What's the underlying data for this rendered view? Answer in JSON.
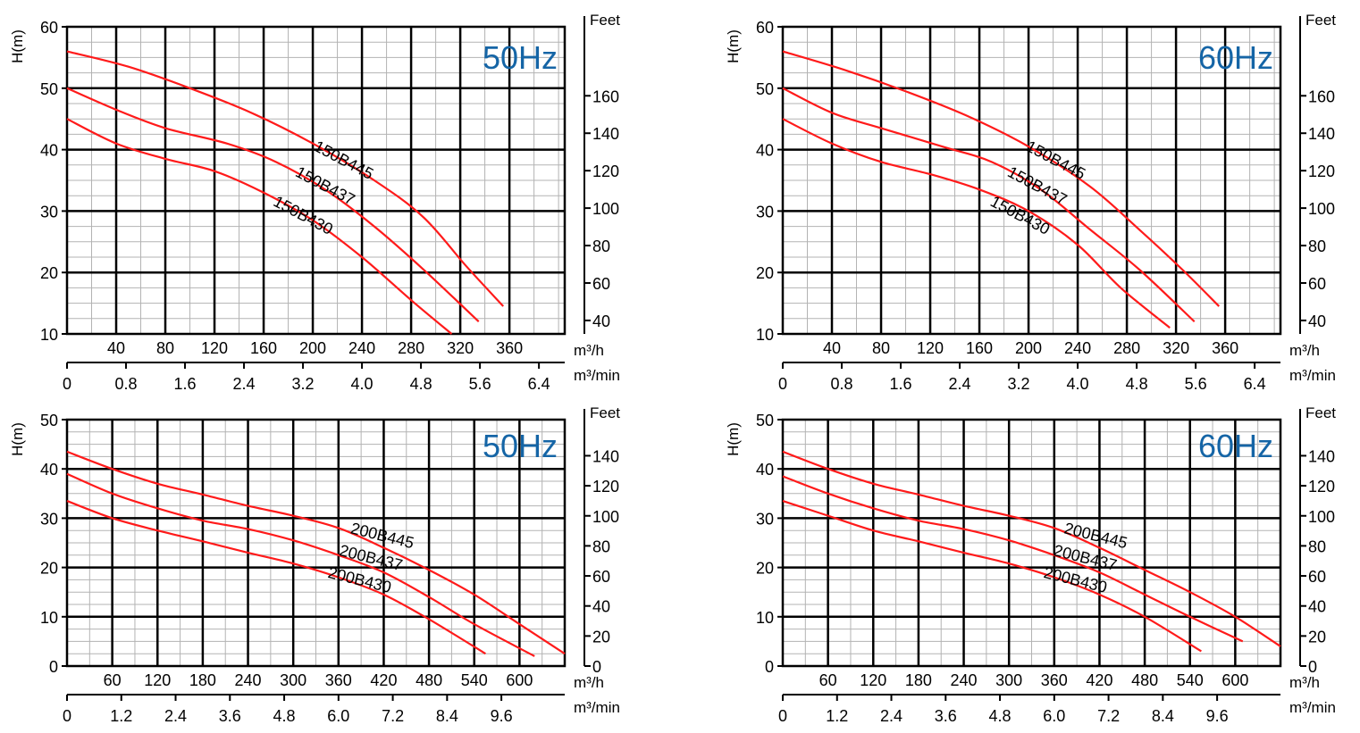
{
  "colors": {
    "curve": "#ff1a1a",
    "freq_label": "#1565a6",
    "grid_major": "#000000",
    "grid_minor": "#b3b3b3"
  },
  "chart_data": [
    {
      "type": "line",
      "freq_label": "50Hz",
      "ylabel": "H(m)",
      "right_unit": "Feet",
      "ylim": [
        10,
        60
      ],
      "y_ticks": [
        10,
        20,
        30,
        40,
        50,
        60
      ],
      "feet_ticks": [
        40,
        60,
        80,
        100,
        120,
        140,
        160
      ],
      "xlim": [
        0,
        405
      ],
      "flow_unit_1": "m³/h",
      "flow_ticks_1": [
        40,
        80,
        120,
        160,
        200,
        240,
        280,
        320,
        360
      ],
      "flow_unit_2": "m³/min",
      "flow_ticks_2": [
        "0",
        "0.8",
        "1.6",
        "2.4",
        "3.2",
        "4.0",
        "4.8",
        "5.6",
        "6.4"
      ],
      "series": [
        {
          "name": "150B445",
          "points": [
            [
              0,
              56
            ],
            [
              50,
              53.5
            ],
            [
              100,
              50
            ],
            [
              150,
              46
            ],
            [
              200,
              41
            ],
            [
              250,
              35
            ],
            [
              290,
              29
            ],
            [
              325,
              21
            ],
            [
              355,
              14.5
            ]
          ],
          "label_at": [
            200,
            40
          ]
        },
        {
          "name": "150B437",
          "points": [
            [
              0,
              50
            ],
            [
              40,
              46.5
            ],
            [
              80,
              43.5
            ],
            [
              130,
              41
            ],
            [
              170,
              38
            ],
            [
              210,
              33.5
            ],
            [
              250,
              27.5
            ],
            [
              290,
              20.5
            ],
            [
              335,
              12
            ]
          ],
          "label_at": [
            185,
            35.8
          ]
        },
        {
          "name": "150B430",
          "points": [
            [
              0,
              45
            ],
            [
              40,
              41
            ],
            [
              80,
              38.5
            ],
            [
              120,
              36.5
            ],
            [
              160,
              33
            ],
            [
              200,
              28.5
            ],
            [
              240,
              22.5
            ],
            [
              280,
              15.5
            ],
            [
              313,
              10
            ]
          ],
          "label_at": [
            167,
            31
          ]
        }
      ]
    },
    {
      "type": "line",
      "freq_label": "60Hz",
      "ylabel": "H(m)",
      "right_unit": "Feet",
      "ylim": [
        10,
        60
      ],
      "y_ticks": [
        10,
        20,
        30,
        40,
        50,
        60
      ],
      "feet_ticks": [
        40,
        60,
        80,
        100,
        120,
        140,
        160
      ],
      "xlim": [
        0,
        405
      ],
      "flow_unit_1": "m³/h",
      "flow_ticks_1": [
        40,
        80,
        120,
        160,
        200,
        240,
        280,
        320,
        360
      ],
      "flow_unit_2": "m³/min",
      "flow_ticks_2": [
        "0",
        "0.8",
        "1.6",
        "2.4",
        "3.2",
        "4.0",
        "4.8",
        "5.6",
        "6.4"
      ],
      "series": [
        {
          "name": "150B445",
          "points": [
            [
              0,
              56
            ],
            [
              50,
              53
            ],
            [
              100,
              49.5
            ],
            [
              150,
              45.5
            ],
            [
              200,
              40.5
            ],
            [
              250,
              34
            ],
            [
              290,
              27
            ],
            [
              325,
              20.5
            ],
            [
              355,
              14.5
            ]
          ],
          "label_at": [
            197,
            40
          ]
        },
        {
          "name": "150B437",
          "points": [
            [
              0,
              50
            ],
            [
              40,
              46
            ],
            [
              80,
              43.5
            ],
            [
              130,
              40.5
            ],
            [
              170,
              38
            ],
            [
              210,
              33.5
            ],
            [
              250,
              27
            ],
            [
              290,
              20.5
            ],
            [
              335,
              12
            ]
          ],
          "label_at": [
            182,
            35.8
          ]
        },
        {
          "name": "150B430",
          "points": [
            [
              0,
              45
            ],
            [
              40,
              41
            ],
            [
              80,
              38
            ],
            [
              120,
              36
            ],
            [
              160,
              33.5
            ],
            [
              200,
              30
            ],
            [
              240,
              24.5
            ],
            [
              275,
              17.5
            ],
            [
              315,
              11
            ]
          ],
          "label_at": [
            168,
            31
          ]
        }
      ]
    },
    {
      "type": "line",
      "freq_label": "50Hz",
      "ylabel": "H(m)",
      "right_unit": "Feet",
      "ylim": [
        0,
        50
      ],
      "y_ticks": [
        0,
        10,
        20,
        30,
        40,
        50
      ],
      "feet_ticks": [
        0,
        20,
        40,
        60,
        80,
        100,
        120,
        140
      ],
      "xlim": [
        0,
        660
      ],
      "flow_unit_1": "m³/h",
      "flow_ticks_1": [
        60,
        120,
        180,
        240,
        300,
        360,
        420,
        480,
        540,
        600
      ],
      "flow_unit_2": "m³/min",
      "flow_ticks_2": [
        "0",
        "1.2",
        "2.4",
        "3.6",
        "4.8",
        "6.0",
        "7.2",
        "8.4",
        "9.6"
      ],
      "series": [
        {
          "name": "200B445",
          "points": [
            [
              0,
              43.5
            ],
            [
              60,
              40
            ],
            [
              120,
              37
            ],
            [
              180,
              34.8
            ],
            [
              240,
              32.5
            ],
            [
              300,
              30.5
            ],
            [
              360,
              28
            ],
            [
              420,
              24
            ],
            [
              480,
              19.5
            ],
            [
              540,
              14.5
            ],
            [
              600,
              8.5
            ],
            [
              660,
              2.5
            ]
          ],
          "label_at": [
            375,
            27
          ]
        },
        {
          "name": "200B437",
          "points": [
            [
              0,
              39
            ],
            [
              60,
              35
            ],
            [
              120,
              32
            ],
            [
              180,
              29.5
            ],
            [
              240,
              27.8
            ],
            [
              300,
              25.5
            ],
            [
              360,
              22.5
            ],
            [
              420,
              19
            ],
            [
              480,
              14
            ],
            [
              540,
              8.5
            ],
            [
              620,
              2
            ]
          ],
          "label_at": [
            360,
            22.5
          ]
        },
        {
          "name": "200B430",
          "points": [
            [
              0,
              33.5
            ],
            [
              60,
              30
            ],
            [
              120,
              27.5
            ],
            [
              180,
              25.3
            ],
            [
              240,
              23
            ],
            [
              300,
              20.8
            ],
            [
              360,
              18
            ],
            [
              420,
              14.5
            ],
            [
              480,
              9.5
            ],
            [
              555,
              2.5
            ]
          ],
          "label_at": [
            345,
            18
          ]
        }
      ]
    },
    {
      "type": "line",
      "freq_label": "60Hz",
      "ylabel": "H(m)",
      "right_unit": "Feet",
      "ylim": [
        0,
        50
      ],
      "y_ticks": [
        0,
        10,
        20,
        30,
        40,
        50
      ],
      "feet_ticks": [
        0,
        20,
        40,
        60,
        80,
        100,
        120,
        140
      ],
      "xlim": [
        0,
        660
      ],
      "flow_unit_1": "m³/h",
      "flow_ticks_1": [
        60,
        120,
        180,
        240,
        300,
        360,
        420,
        480,
        540,
        600
      ],
      "flow_unit_2": "m³/min",
      "flow_ticks_2": [
        "0",
        "1.2",
        "2.4",
        "3.6",
        "4.8",
        "6.0",
        "7.2",
        "8.4",
        "9.6"
      ],
      "series": [
        {
          "name": "200B445",
          "points": [
            [
              0,
              43.5
            ],
            [
              60,
              40
            ],
            [
              120,
              37
            ],
            [
              180,
              34.8
            ],
            [
              240,
              32.5
            ],
            [
              300,
              30.5
            ],
            [
              360,
              28
            ],
            [
              420,
              24
            ],
            [
              480,
              19.5
            ],
            [
              540,
              15
            ],
            [
              600,
              10
            ],
            [
              660,
              4
            ]
          ],
          "label_at": [
            372,
            27
          ]
        },
        {
          "name": "200B437",
          "points": [
            [
              0,
              38.5
            ],
            [
              60,
              35
            ],
            [
              120,
              32
            ],
            [
              180,
              29.5
            ],
            [
              240,
              27.8
            ],
            [
              300,
              25.5
            ],
            [
              360,
              22.5
            ],
            [
              420,
              19
            ],
            [
              480,
              14.5
            ],
            [
              540,
              10
            ],
            [
              610,
              5
            ]
          ],
          "label_at": [
            358,
            22.5
          ]
        },
        {
          "name": "200B430",
          "points": [
            [
              0,
              33.5
            ],
            [
              60,
              30.5
            ],
            [
              120,
              27.5
            ],
            [
              180,
              25.3
            ],
            [
              240,
              23
            ],
            [
              300,
              20.8
            ],
            [
              360,
              18
            ],
            [
              420,
              14.5
            ],
            [
              480,
              10
            ],
            [
              555,
              3
            ]
          ],
          "label_at": [
            345,
            18
          ]
        }
      ]
    }
  ]
}
